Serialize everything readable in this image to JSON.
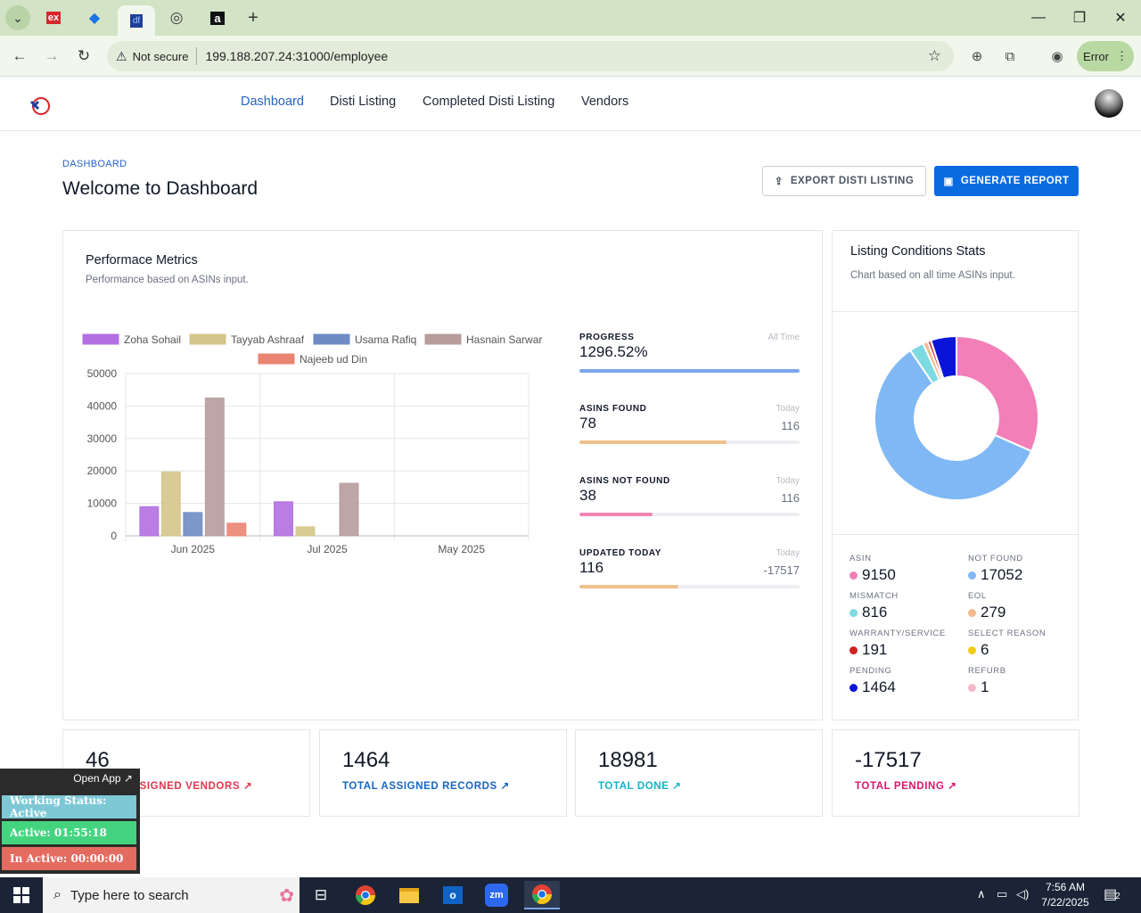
{
  "browser": {
    "tabs": [
      {
        "name": "tab-ex",
        "glyph": "ex",
        "color": "#d9262b"
      },
      {
        "name": "tab-2",
        "glyph": "◆",
        "color": "#1a73e8"
      },
      {
        "name": "tab-active",
        "glyph": "df",
        "color": "#1f3f99"
      },
      {
        "name": "tab-globe",
        "glyph": "◎",
        "color": "#444"
      },
      {
        "name": "tab-amazon",
        "glyph": "a",
        "color": "#111"
      }
    ],
    "security_label": "Not secure",
    "url": "199.188.207.24:31000/employee",
    "error_label": "Error"
  },
  "nav": {
    "items": [
      "Dashboard",
      "Disti Listing",
      "Completed Disti Listing",
      "Vendors"
    ],
    "active": 0
  },
  "page": {
    "breadcrumb": "DASHBOARD",
    "title": "Welcome to Dashboard",
    "export_label": "EXPORT DISTI LISTING",
    "generate_label": "GENERATE REPORT"
  },
  "perf": {
    "title": "Performace Metrics",
    "subtitle": "Performance based on ASINs input."
  },
  "chart_data": {
    "type": "bar",
    "categories": [
      "Jun 2025",
      "Jul 2025",
      "May 2025"
    ],
    "series": [
      {
        "name": "Zoha Sohail",
        "color": "#b26fe0",
        "values": [
          9000,
          10500,
          0
        ]
      },
      {
        "name": "Tayyab Ashraaf",
        "color": "#d4c58a",
        "values": [
          19700,
          2800,
          0
        ]
      },
      {
        "name": "Usama Rafiq",
        "color": "#6e8cc3",
        "values": [
          7200,
          0,
          0
        ]
      },
      {
        "name": "Hasnain Sarwar",
        "color": "#b79c9c",
        "values": [
          42500,
          16200,
          0
        ]
      },
      {
        "name": "Najeeb ud Din",
        "color": "#ea8472",
        "values": [
          3900,
          0,
          0
        ]
      }
    ],
    "ylim": [
      0,
      50000
    ],
    "yticks": [
      "50000",
      "40000",
      "30000",
      "20000",
      "10000",
      "0"
    ],
    "grid": true,
    "legend": "top"
  },
  "metrics": [
    {
      "label": "PROGRESS",
      "right": "All Time",
      "value": "1296.52%",
      "value2": "",
      "fill": 1.0,
      "color": "#7aa7ec"
    },
    {
      "label": "ASINS FOUND",
      "right": "Today",
      "value": "78",
      "value2": "116",
      "fill": 0.67,
      "color": "#f0c08e"
    },
    {
      "label": "ASINS NOT FOUND",
      "right": "Today",
      "value": "38",
      "value2": "116",
      "fill": 0.33,
      "color": "#ef86b4"
    },
    {
      "label": "UPDATED TODAY",
      "right": "Today",
      "value": "116",
      "value2": "-17517",
      "fill": 0.45,
      "color": "#f0c08e"
    }
  ],
  "conditions": {
    "title": "Listing Conditions Stats",
    "subtitle": "Chart based on all time ASINs input.",
    "stats": [
      {
        "label": "ASIN",
        "value": "9150",
        "color": "#f27fb8"
      },
      {
        "label": "NOT FOUND",
        "value": "17052",
        "color": "#7fb8f5"
      },
      {
        "label": "MISMATCH",
        "value": "816",
        "color": "#7dd9e2"
      },
      {
        "label": "EOL",
        "value": "279",
        "color": "#f3b98b"
      },
      {
        "label": "WARRANTY/SERVICE",
        "value": "191",
        "color": "#d21f1f"
      },
      {
        "label": "SELECT REASON",
        "value": "6",
        "color": "#f0cc15"
      },
      {
        "label": "PENDING",
        "value": "1464",
        "color": "#0a14d9"
      },
      {
        "label": "REFURB",
        "value": "1",
        "color": "#f6b8c8"
      }
    ],
    "donut_order": [
      0,
      1,
      2,
      3,
      4,
      5,
      7,
      6
    ]
  },
  "bottom_cards": [
    {
      "value": "46",
      "label": "TOTAL ASSIGNED VENDORS",
      "color": "#e0364d"
    },
    {
      "value": "1464",
      "label": "TOTAL ASSIGNED RECORDS",
      "color": "#1766c4"
    },
    {
      "value": "18981",
      "label": "TOTAL DONE",
      "color": "#11b3c9"
    },
    {
      "value": "-17517",
      "label": "TOTAL PENDING",
      "color": "#d6156e"
    }
  ],
  "overlay": {
    "open_app": "Open App ↗",
    "working": "Working Status: Active",
    "active": "Active: 01:55:18",
    "inactive": "In Active: 00:00:00"
  },
  "taskbar": {
    "search_placeholder": "Type here to search",
    "time": "7:56 AM",
    "date": "7/22/2025",
    "notifications": "2"
  }
}
